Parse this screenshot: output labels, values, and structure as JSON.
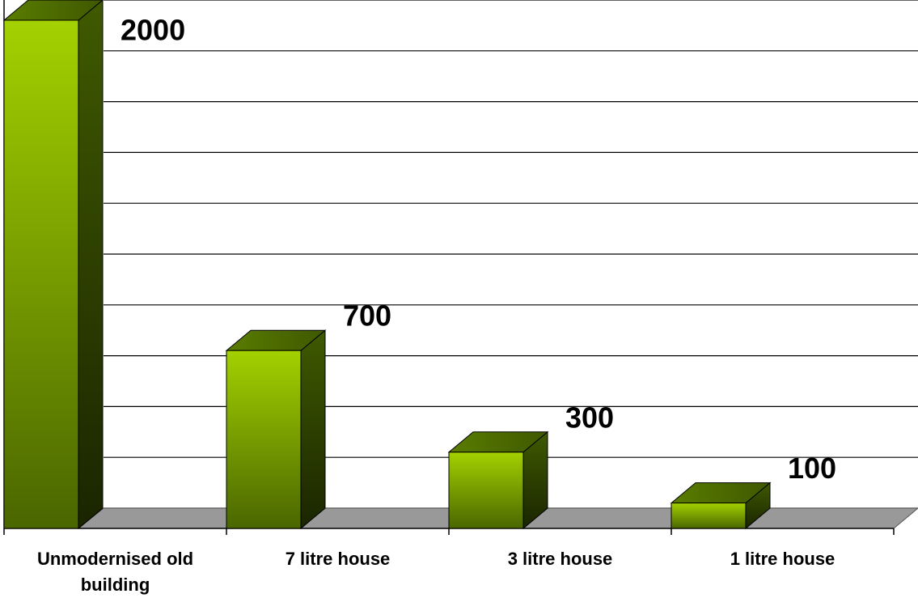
{
  "chart_data": {
    "type": "bar3d",
    "categories": [
      "Unmodernised old building",
      "7 litre house",
      "3 litre house",
      "1 litre house"
    ],
    "values": [
      2000,
      700,
      300,
      100
    ],
    "ylim": [
      0,
      2000
    ],
    "yticks": [
      0,
      200,
      400,
      600,
      800,
      1000,
      1200,
      1400,
      1600,
      1800,
      2000
    ],
    "grid": true,
    "color": "#99cc00",
    "floor_color": "#999999"
  }
}
